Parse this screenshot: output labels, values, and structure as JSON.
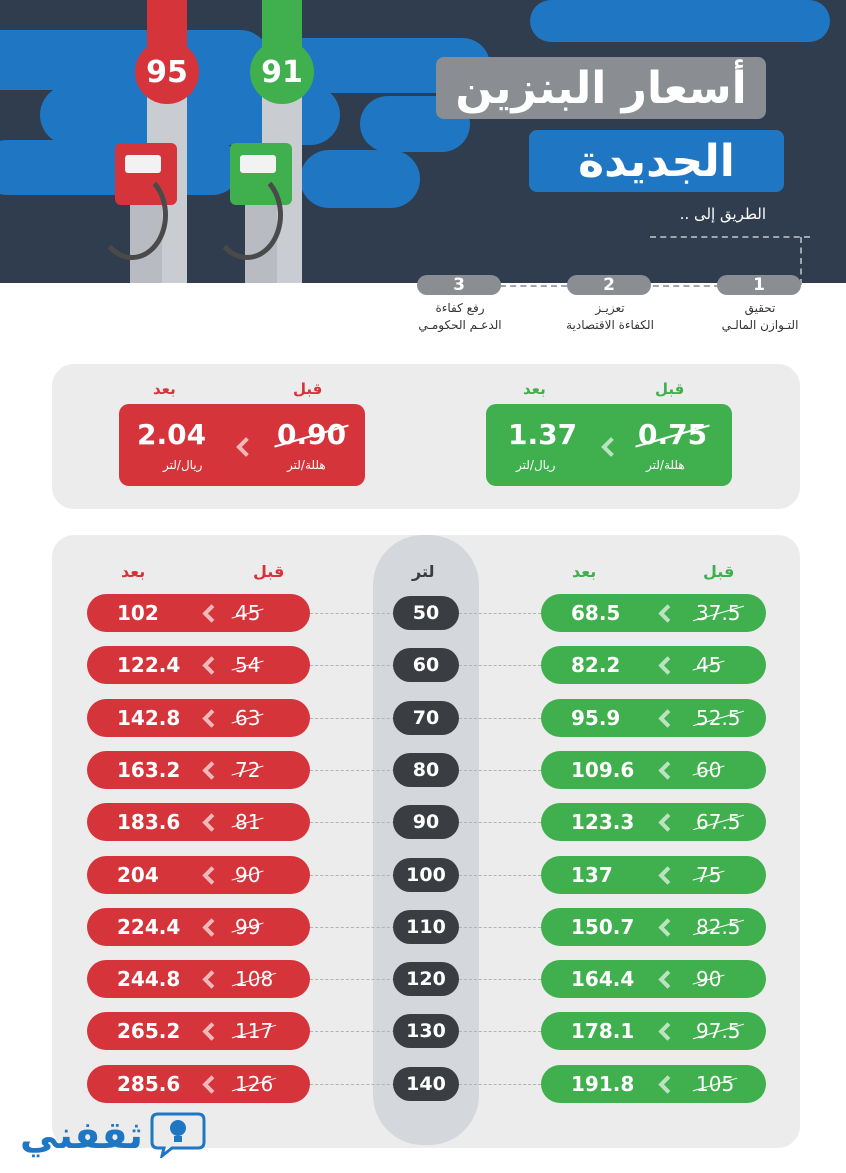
{
  "header": {
    "title_line1": "أسعار البنزين",
    "title_line2": "الجديدة",
    "road_label": "الطريق إلى ..",
    "pump95_label": "95",
    "pump91_label": "91",
    "colors": {
      "red": "#d6343b",
      "green": "#3fb04d",
      "blue": "#1f77c3",
      "navy": "#2f3d4f",
      "gray": "#8a8d91"
    },
    "steps": [
      {
        "num": "1",
        "line1": "تحقيق",
        "line2": "التـوازن المالـي"
      },
      {
        "num": "2",
        "line1": "تعزيـز",
        "line2": "الكفاءة الاقتصادية"
      },
      {
        "num": "3",
        "line1": "رفع كفاءة",
        "line2": "الدعـم الحكومـي"
      }
    ]
  },
  "summary": {
    "green": {
      "before_label": "قبل",
      "after_label": "بعد",
      "before_value": "0.75",
      "before_unit": "هللة/لتر",
      "after_value": "1.37",
      "after_unit": "ريال/لتر"
    },
    "red": {
      "before_label": "قبل",
      "after_label": "بعد",
      "before_value": "0.90",
      "before_unit": "هللة/لتر",
      "after_value": "2.04",
      "after_unit": "ريال/لتر"
    }
  },
  "table": {
    "green_before_label": "قبل",
    "green_after_label": "بعد",
    "litre_label": "لتر",
    "red_before_label": "قبل",
    "red_after_label": "بعد",
    "rows": [
      {
        "litres": "50",
        "g_before": "37.5",
        "g_after": "68.5",
        "r_before": "45",
        "r_after": "102"
      },
      {
        "litres": "60",
        "g_before": "45",
        "g_after": "82.2",
        "r_before": "54",
        "r_after": "122.4"
      },
      {
        "litres": "70",
        "g_before": "52.5",
        "g_after": "95.9",
        "r_before": "63",
        "r_after": "142.8"
      },
      {
        "litres": "80",
        "g_before": "60",
        "g_after": "109.6",
        "r_before": "72",
        "r_after": "163.2"
      },
      {
        "litres": "90",
        "g_before": "67.5",
        "g_after": "123.3",
        "r_before": "81",
        "r_after": "183.6"
      },
      {
        "litres": "100",
        "g_before": "75",
        "g_after": "137",
        "r_before": "90",
        "r_after": "204"
      },
      {
        "litres": "110",
        "g_before": "82.5",
        "g_after": "150.7",
        "r_before": "99",
        "r_after": "224.4"
      },
      {
        "litres": "120",
        "g_before": "90",
        "g_after": "164.4",
        "r_before": "108",
        "r_after": "244.8"
      },
      {
        "litres": "130",
        "g_before": "97.5",
        "g_after": "178.1",
        "r_before": "117",
        "r_after": "265.2"
      },
      {
        "litres": "140",
        "g_before": "105",
        "g_after": "191.8",
        "r_before": "126",
        "r_after": "285.6"
      }
    ]
  },
  "brand": {
    "name": "ثقفني",
    "icon": "lightbulb-icon"
  }
}
